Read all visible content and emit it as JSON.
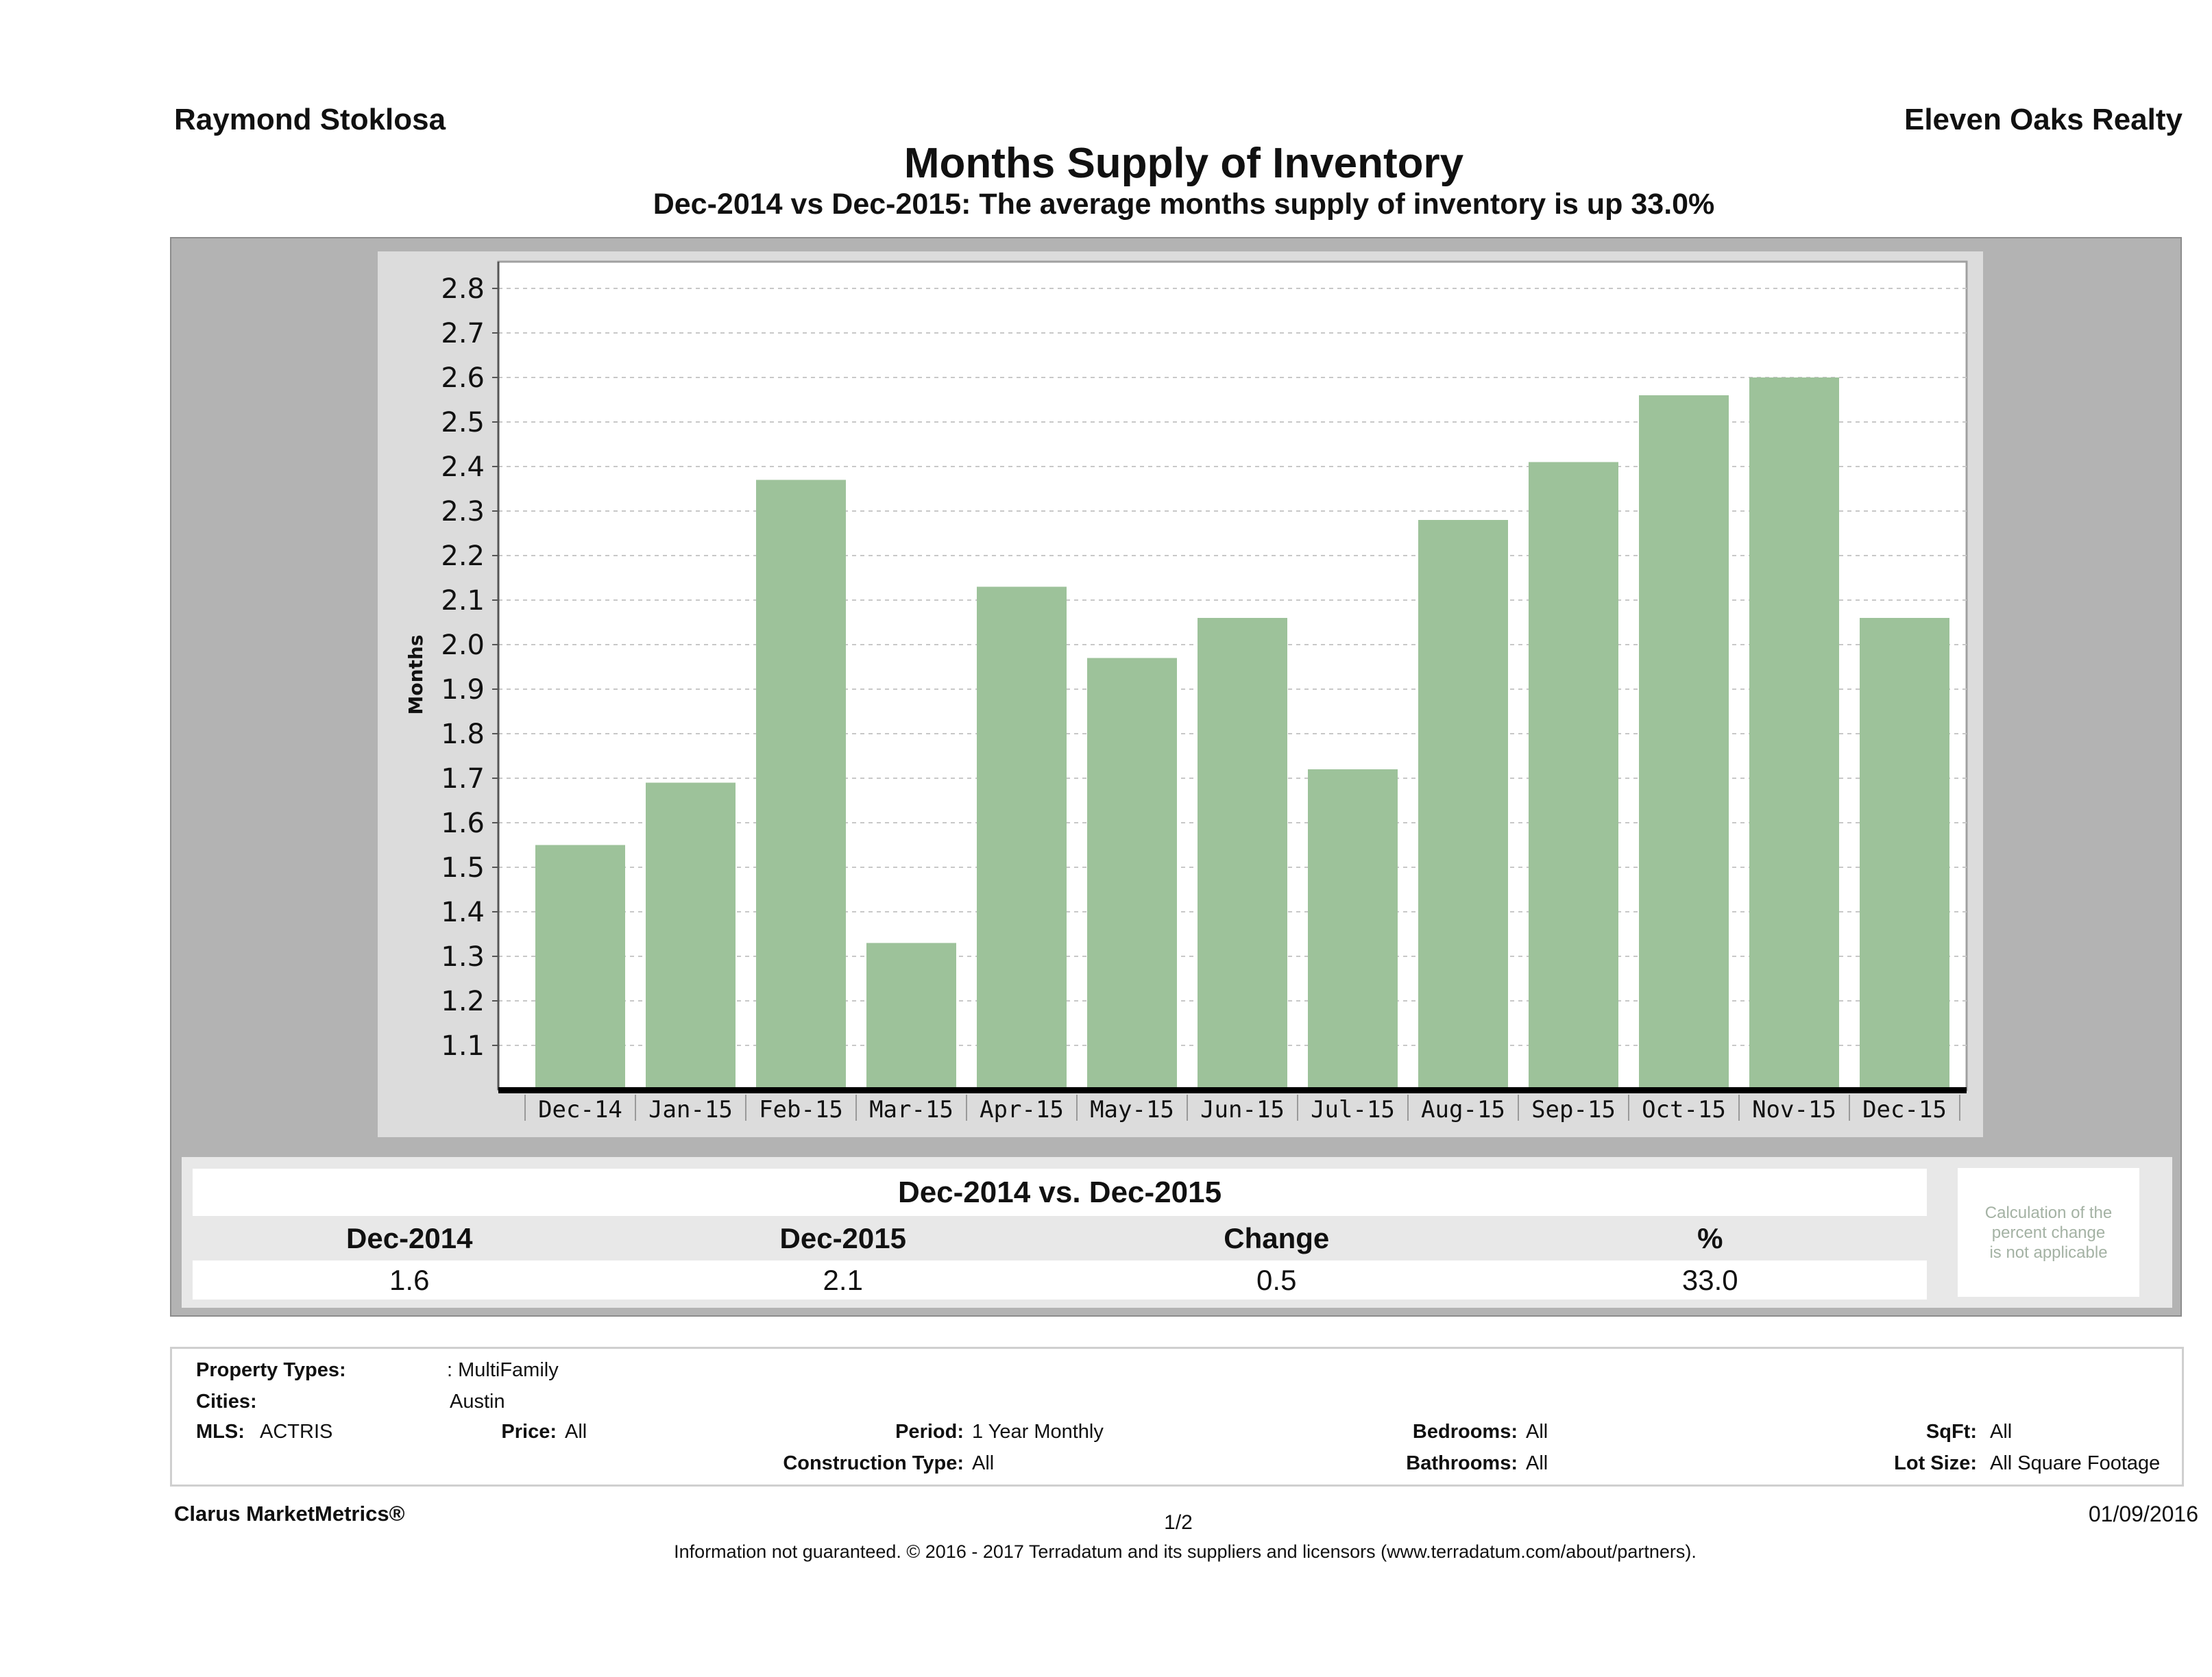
{
  "header": {
    "agent": "Raymond Stoklosa",
    "company": "Eleven Oaks Realty",
    "title": "Months Supply of Inventory",
    "subtitle": "Dec-2014 vs Dec-2015: The average months supply of inventory is up 33.0%"
  },
  "chart_data": {
    "type": "bar",
    "title": "Months Supply of Inventory",
    "xlabel": "",
    "ylabel": "Months",
    "categories": [
      "Dec-14",
      "Jan-15",
      "Feb-15",
      "Mar-15",
      "Apr-15",
      "May-15",
      "Jun-15",
      "Jul-15",
      "Aug-15",
      "Sep-15",
      "Oct-15",
      "Nov-15",
      "Dec-15"
    ],
    "values": [
      1.55,
      1.69,
      2.37,
      1.33,
      2.13,
      1.97,
      2.06,
      1.72,
      2.28,
      2.41,
      2.56,
      2.6,
      2.06
    ],
    "ylim": [
      1.0,
      2.86
    ],
    "yticks": [
      "1.1",
      "1.2",
      "1.3",
      "1.4",
      "1.5",
      "1.6",
      "1.7",
      "1.8",
      "1.9",
      "2.0",
      "2.1",
      "2.2",
      "2.3",
      "2.4",
      "2.5",
      "2.6",
      "2.7",
      "2.8"
    ],
    "grid": true,
    "legend": "none",
    "bar_color": "#9dc29a"
  },
  "summary": {
    "title": "Dec-2014 vs. Dec-2015",
    "headers": [
      "Dec-2014",
      "Dec-2015",
      "Change",
      "%"
    ],
    "values": [
      "1.6",
      "2.1",
      "0.5",
      "33.0"
    ],
    "note_lines": [
      "Calculation of the",
      "percent change",
      "is not applicable"
    ]
  },
  "filters": {
    "property_types_label": "Property Types:",
    "property_types_value": ": MultiFamily",
    "cities_label": "Cities:",
    "cities_value": "Austin",
    "mls_label": "MLS:",
    "mls_value": "ACTRIS",
    "price_label": "Price:",
    "price_value": "All",
    "period_label": "Period:",
    "period_value": "1 Year Monthly",
    "bedrooms_label": "Bedrooms:",
    "bedrooms_value": "All",
    "sqft_label": "SqFt:",
    "sqft_value": "All",
    "construction_label": "Construction Type:",
    "construction_value": "All",
    "bathrooms_label": "Bathrooms:",
    "bathrooms_value": "All",
    "lot_size_label": "Lot Size:",
    "lot_size_value": "All Square Footage"
  },
  "footer": {
    "brand": "Clarus MarketMetrics®",
    "page": "1/2",
    "date": "01/09/2016",
    "disclaimer": "Information not guaranteed. © 2016 - 2017 Terradatum and its suppliers and licensors (www.terradatum.com/about/partners)."
  }
}
